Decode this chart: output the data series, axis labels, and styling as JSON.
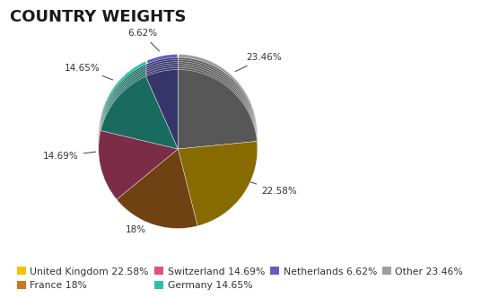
{
  "title": "COUNTRY WEIGHTS",
  "slices": [
    {
      "label": "Other",
      "value": 23.46,
      "color": "#9E9E9E"
    },
    {
      "label": "United Kingdom",
      "value": 22.58,
      "color": "#F5C200"
    },
    {
      "label": "France",
      "value": 18.0,
      "color": "#CC7722"
    },
    {
      "label": "Switzerland",
      "value": 14.69,
      "color": "#E05080"
    },
    {
      "label": "Germany",
      "value": 14.65,
      "color": "#2DC0AD"
    },
    {
      "label": "Netherlands",
      "value": 6.62,
      "color": "#6060C0"
    }
  ],
  "legend_order": [
    {
      "label": "United Kingdom",
      "value": 22.58,
      "color": "#F5C200"
    },
    {
      "label": "France",
      "value": 18.0,
      "color": "#CC7722"
    },
    {
      "label": "Switzerland",
      "value": 14.69,
      "color": "#E05080"
    },
    {
      "label": "Germany",
      "value": 14.65,
      "color": "#2DC0AD"
    },
    {
      "label": "Netherlands",
      "value": 6.62,
      "color": "#6060C0"
    },
    {
      "label": "Other",
      "value": 23.46,
      "color": "#9E9E9E"
    }
  ],
  "background_color": "#FFFFFF",
  "title_fontsize": 13,
  "title_fontweight": "bold",
  "startangle": 90,
  "autopct_labels": [
    "23.46%",
    "22.58%",
    "18%",
    "14.69%",
    "14.65%",
    "6.62%"
  ],
  "shadow_color": "#B8960A",
  "depth_color": "#A07800"
}
